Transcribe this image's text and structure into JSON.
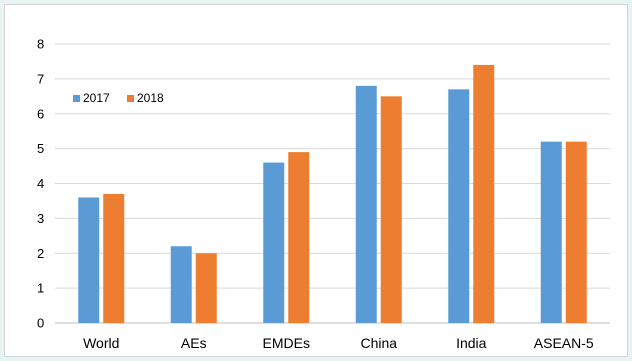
{
  "chart_data": {
    "type": "bar",
    "categories": [
      "World",
      "AEs",
      "EMDEs",
      "China",
      "India",
      "ASEAN-5"
    ],
    "series": [
      {
        "name": "2017",
        "values": [
          3.6,
          2.2,
          4.6,
          6.8,
          6.7,
          5.2
        ],
        "color": "#5b9bd5"
      },
      {
        "name": "2018",
        "values": [
          3.7,
          2.0,
          4.9,
          6.5,
          7.4,
          5.2
        ],
        "color": "#ed7d31"
      }
    ],
    "title": "",
    "xlabel": "",
    "ylabel": "",
    "ylim": [
      0,
      8
    ],
    "yticks": [
      0,
      1,
      2,
      3,
      4,
      5,
      6,
      7,
      8
    ],
    "grid": true,
    "legend_position": "top-left"
  }
}
